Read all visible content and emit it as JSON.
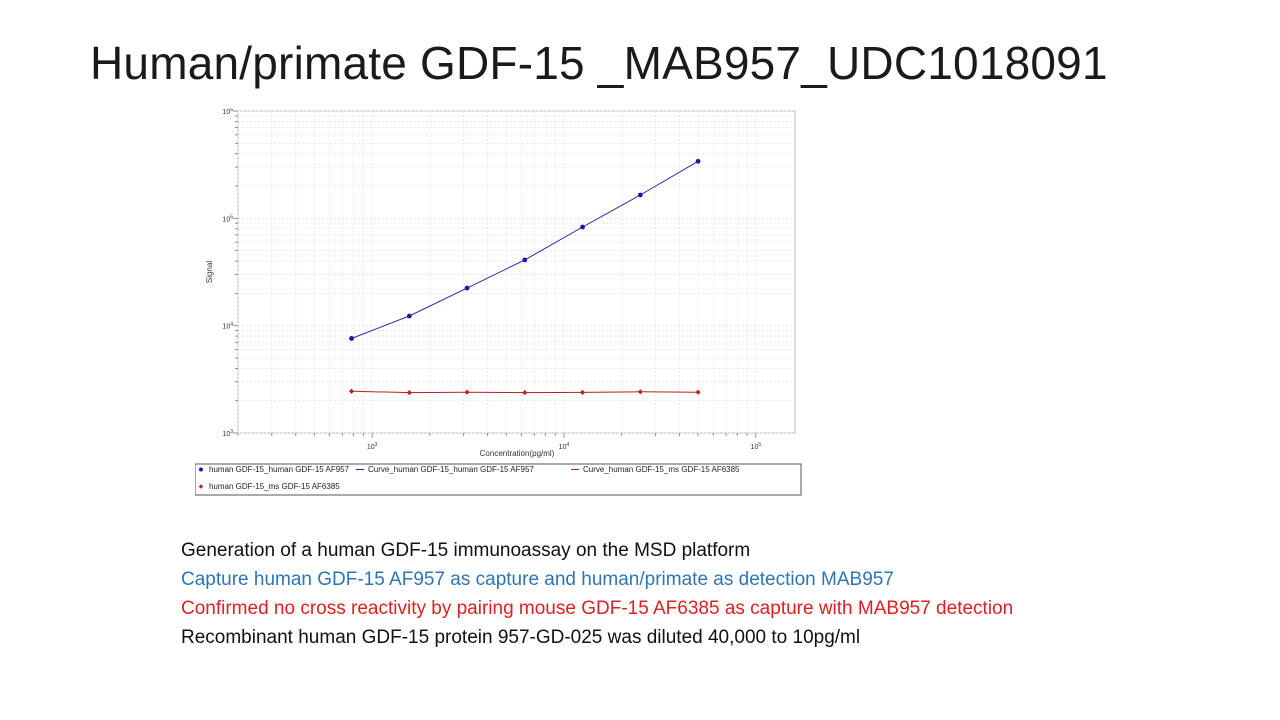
{
  "slide": {
    "title": "Human/primate GDF-15 _MAB957_UDC1018091",
    "notes": [
      {
        "text": "Generation of a human GDF-15 immunoassay on the MSD platform",
        "color": "#111111"
      },
      {
        "text": "Capture human GDF-15 AF957 as capture and human/primate as detection MAB957",
        "color": "#2E75B6"
      },
      {
        "text": "Confirmed no cross reactivity by pairing mouse GDF-15 AF6385 as capture with MAB957 detection",
        "color": "#E02020"
      },
      {
        "text": "Recombinant human GDF-15 protein 957-GD-025 was diluted 40,000 to 10pg/ml",
        "color": "#111111"
      }
    ]
  },
  "chart_data": {
    "type": "scatter",
    "xlabel": "Concentration(pg/ml)",
    "ylabel": "Signal",
    "xscale": "log",
    "yscale": "log",
    "xlim": [
      200,
      160000
    ],
    "ylim": [
      1000,
      1000000
    ],
    "grid": true,
    "legend_position": "bottom",
    "x_ticks": [
      {
        "value": 1000,
        "label": "10^3"
      },
      {
        "value": 10000,
        "label": "10^4"
      },
      {
        "value": 100000,
        "label": "10^5"
      }
    ],
    "y_ticks": [
      {
        "value": 1000,
        "label": "10^3"
      },
      {
        "value": 10000,
        "label": "10^4"
      },
      {
        "value": 100000,
        "label": "10^5"
      },
      {
        "value": 1000000,
        "label": "10^6"
      }
    ],
    "series": [
      {
        "name": "human GDF-15_human GDF-15 AF957",
        "kind": "points",
        "marker": "circle",
        "color": "#1a1aa8",
        "x": [
          781,
          1563,
          3125,
          6250,
          12500,
          25000,
          50000
        ],
        "y": [
          7600,
          12300,
          22400,
          41000,
          83000,
          165000,
          340000
        ]
      },
      {
        "name": "Curve_human GDF-15_human GDF-15 AF957",
        "kind": "curve",
        "color": "#2a2aa0",
        "x": [
          781,
          1563,
          3125,
          6250,
          12500,
          25000,
          50000
        ],
        "y": [
          7600,
          12300,
          22400,
          41000,
          83000,
          165000,
          340000
        ]
      },
      {
        "name": "Curve_human GDF-15_ms GDF-15 AF6385",
        "kind": "curve",
        "color": "#b22222",
        "x": [
          781,
          1563,
          3125,
          6250,
          12500,
          25000,
          50000
        ],
        "y": [
          2450,
          2380,
          2400,
          2380,
          2390,
          2420,
          2400
        ]
      },
      {
        "name": "human GDF-15_ms GDF-15 AF6385",
        "kind": "points",
        "marker": "diamond",
        "color": "#c0201a",
        "x": [
          781,
          1563,
          3125,
          6250,
          12500,
          25000,
          50000
        ],
        "y": [
          2450,
          2380,
          2400,
          2380,
          2390,
          2420,
          2400
        ]
      }
    ]
  }
}
